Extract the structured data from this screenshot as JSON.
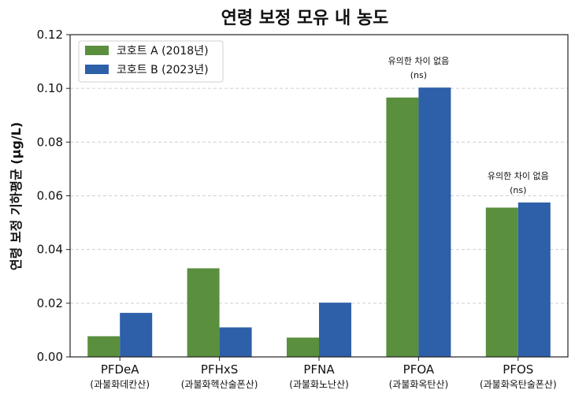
{
  "chart_data": {
    "type": "bar",
    "title": "연령 보정 모유 내 농도",
    "xlabel": "",
    "ylabel": "연령 보정 기하평균 (μg/L)",
    "ylim": [
      0,
      0.12
    ],
    "yticks": [
      "0.00",
      "0.02",
      "0.04",
      "0.06",
      "0.08",
      "0.10",
      "0.12"
    ],
    "grid": "horizontal dashed",
    "legend_position": "top-left",
    "categories": [
      {
        "code": "PFDeA",
        "name": "(과불화데칸산)"
      },
      {
        "code": "PFHxS",
        "name": "(과불화헥산술폰산)"
      },
      {
        "code": "PFNA",
        "name": "(과불화노난산)"
      },
      {
        "code": "PFOA",
        "name": "(과불화옥탄산)"
      },
      {
        "code": "PFOS",
        "name": "(과불화옥탄술폰산)"
      }
    ],
    "series": [
      {
        "name": "코호트 A (2018년)",
        "color": "#5a8f3e",
        "values": [
          0.0077,
          0.033,
          0.0072,
          0.0966,
          0.0556
        ]
      },
      {
        "name": "코호트 B (2023년)",
        "color": "#2e5fa9",
        "values": [
          0.0164,
          0.011,
          0.0202,
          0.1003,
          0.0575
        ]
      }
    ],
    "annotations": [
      {
        "category_index": 3,
        "lines": [
          "유의한 차이 없음",
          "(ns)"
        ]
      },
      {
        "category_index": 4,
        "lines": [
          "유의한 차이 없음",
          "(ns)"
        ]
      }
    ]
  }
}
